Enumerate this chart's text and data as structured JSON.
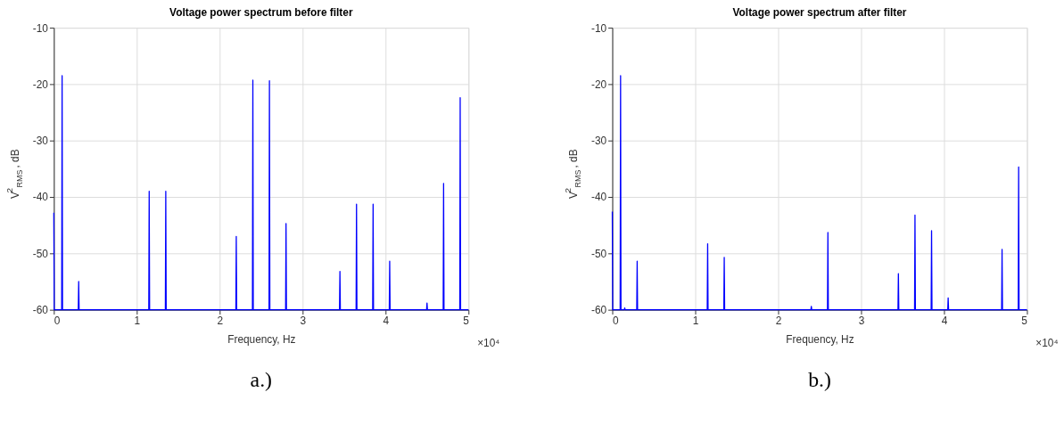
{
  "chart_data": [
    {
      "type": "line",
      "title": "Voltage power spectrum before filter",
      "xlabel": "Frequency, Hz",
      "ylabel": "V$^{2}$$_{RMS}$ , dB",
      "xlim": [
        0,
        5
      ],
      "xticks": [
        0,
        1,
        2,
        3,
        4,
        5
      ],
      "ylim": [
        -60,
        -10
      ],
      "yticks": [
        -60,
        -50,
        -40,
        -30,
        -20,
        -10
      ],
      "grid": true,
      "marker": "none",
      "line_style": "solid",
      "annotations": [
        "×10⁴",
        "a.)"
      ],
      "series": [
        {
          "color": "#0000ff",
          "x": [
            0,
            0.005,
            0.095,
            0.1,
            0.105,
            0.295,
            0.3,
            0.305,
            1.145,
            1.15,
            1.155,
            1.345,
            1.35,
            1.355,
            2.195,
            2.2,
            2.205,
            2.395,
            2.4,
            2.405,
            2.595,
            2.6,
            2.605,
            2.795,
            2.8,
            2.805,
            3.445,
            3.45,
            3.455,
            3.645,
            3.65,
            3.655,
            3.845,
            3.85,
            3.855,
            4.045,
            4.05,
            4.055,
            4.495,
            4.5,
            4.505,
            4.695,
            4.7,
            4.705,
            4.895,
            4.9,
            4.905,
            5
          ],
          "values": [
            -42.8,
            -60,
            -60,
            -18.5,
            -60,
            -60,
            -55.0,
            -60,
            -60,
            -39.0,
            -60,
            -60,
            -39.0,
            -60,
            -60,
            -47.0,
            -60,
            -60,
            -19.3,
            -60,
            -60,
            -19.4,
            -60,
            -60,
            -44.7,
            -60,
            -60,
            -53.2,
            -60,
            -60,
            -41.3,
            -60,
            -60,
            -41.3,
            -60,
            -60,
            -51.4,
            -60,
            -60,
            -58.8,
            -60,
            -60,
            -37.6,
            -60,
            -60,
            -22.4,
            -60,
            -60
          ]
        }
      ]
    },
    {
      "type": "line",
      "title": "Voltage power spectrum after filter",
      "xlabel": "Frequency, Hz",
      "ylabel": "V$^{2}$$_{RMS}$ , dB",
      "xlim": [
        0,
        5
      ],
      "xticks": [
        0,
        1,
        2,
        3,
        4,
        5
      ],
      "ylim": [
        -60,
        -10
      ],
      "yticks": [
        -60,
        -50,
        -40,
        -30,
        -20,
        -10
      ],
      "grid": true,
      "marker": "none",
      "line_style": "solid",
      "annotations": [
        "×10⁴",
        "b.)"
      ],
      "series": [
        {
          "color": "#0000ff",
          "x": [
            0,
            0.005,
            0.095,
            0.1,
            0.105,
            0.145,
            0.15,
            0.155,
            0.295,
            0.3,
            0.305,
            1.145,
            1.15,
            1.155,
            1.345,
            1.35,
            1.355,
            2.395,
            2.4,
            2.405,
            2.595,
            2.6,
            2.605,
            3.445,
            3.45,
            3.455,
            3.645,
            3.65,
            3.655,
            3.845,
            3.85,
            3.855,
            4.045,
            4.05,
            4.055,
            4.695,
            4.7,
            4.705,
            4.895,
            4.9,
            4.905,
            5
          ],
          "values": [
            -42.6,
            -60,
            -60,
            -18.5,
            -60,
            -60,
            -59.7,
            -60,
            -60,
            -51.4,
            -60,
            -60,
            -48.3,
            -60,
            -60,
            -50.7,
            -60,
            -60,
            -59.4,
            -60,
            -60,
            -46.3,
            -60,
            -60,
            -53.6,
            -60,
            -60,
            -43.2,
            -60,
            -60,
            -46.0,
            -60,
            -60,
            -57.9,
            -60,
            -60,
            -49.3,
            -60,
            -60,
            -34.7,
            -60,
            -60
          ]
        }
      ]
    }
  ]
}
